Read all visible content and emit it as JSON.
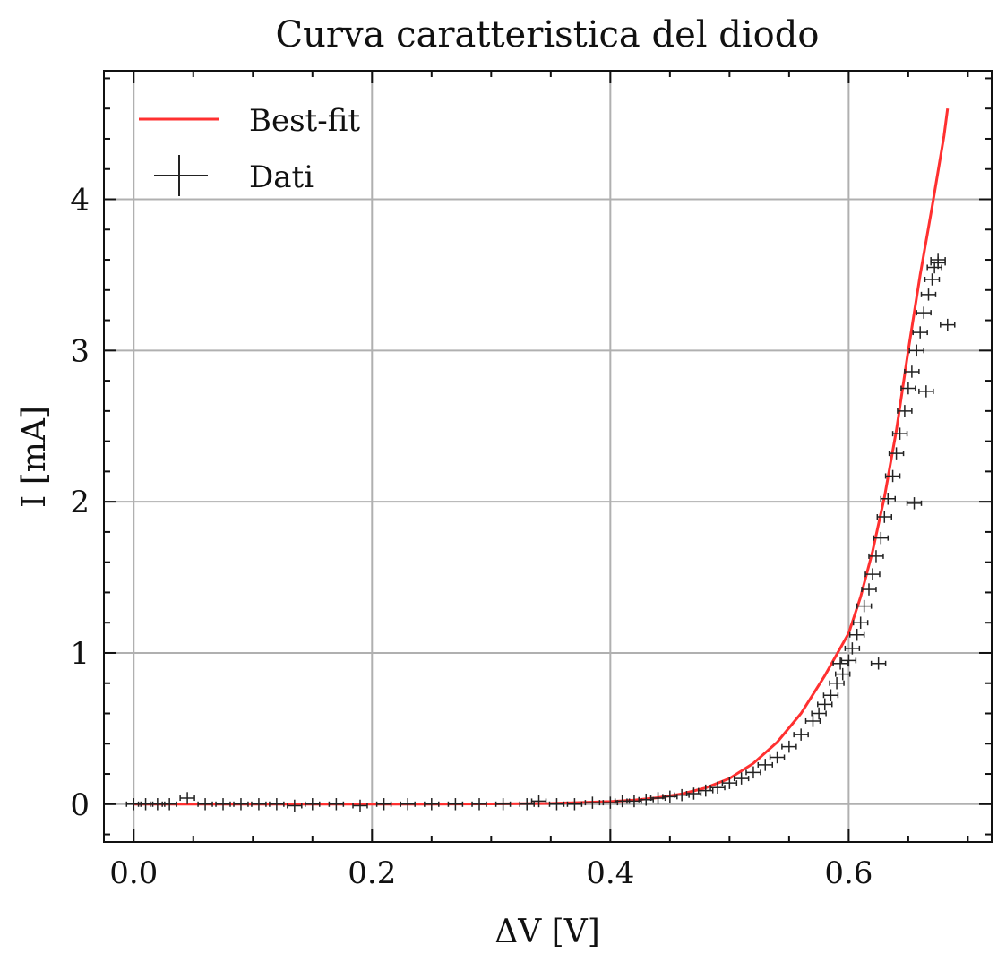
{
  "chart_data": {
    "type": "scatter",
    "title": "Curva caratteristica del diodo",
    "xlabel": "ΔV [V]",
    "ylabel": "I [mA]",
    "xlim": [
      -0.025,
      0.72
    ],
    "ylim": [
      -0.25,
      4.85
    ],
    "xticks": [
      0.0,
      0.2,
      0.4,
      0.6
    ],
    "xtick_labels": [
      "0.0",
      "0.2",
      "0.4",
      "0.6"
    ],
    "yticks": [
      0,
      1,
      2,
      3,
      4
    ],
    "ytick_labels": [
      "0",
      "1",
      "2",
      "3",
      "4"
    ],
    "grid": true,
    "legend_position": "top-left",
    "legend": [
      {
        "label": "Best-fit",
        "kind": "line",
        "color": "#ff3030"
      },
      {
        "label": "Dati",
        "kind": "errorbar",
        "color": "#222222"
      }
    ],
    "series": [
      {
        "name": "Best-fit",
        "kind": "line",
        "color": "#ff3030",
        "x": [
          0.0,
          0.05,
          0.1,
          0.15,
          0.2,
          0.25,
          0.3,
          0.35,
          0.4,
          0.42,
          0.44,
          0.46,
          0.48,
          0.5,
          0.52,
          0.54,
          0.56,
          0.58,
          0.6,
          0.61,
          0.62,
          0.63,
          0.64,
          0.65,
          0.66,
          0.67,
          0.68,
          0.683
        ],
        "y": [
          0.0,
          0.0,
          0.0,
          0.0,
          0.0,
          0.0,
          0.002,
          0.005,
          0.017,
          0.027,
          0.043,
          0.068,
          0.108,
          0.17,
          0.27,
          0.41,
          0.6,
          0.85,
          1.13,
          1.37,
          1.67,
          2.03,
          2.47,
          3.0,
          3.5,
          3.95,
          4.42,
          4.6
        ]
      },
      {
        "name": "Dati",
        "kind": "errorbar",
        "color": "#222222",
        "xerr": 0.006,
        "yerr": 0.04,
        "x": [
          0.0,
          0.01,
          0.02,
          0.03,
          0.045,
          0.06,
          0.075,
          0.09,
          0.105,
          0.12,
          0.135,
          0.15,
          0.17,
          0.19,
          0.21,
          0.23,
          0.25,
          0.27,
          0.29,
          0.31,
          0.33,
          0.34,
          0.355,
          0.37,
          0.385,
          0.4,
          0.41,
          0.42,
          0.43,
          0.44,
          0.45,
          0.46,
          0.47,
          0.48,
          0.49,
          0.5,
          0.51,
          0.52,
          0.53,
          0.54,
          0.55,
          0.56,
          0.57,
          0.575,
          0.58,
          0.585,
          0.59,
          0.595,
          0.6,
          0.603,
          0.607,
          0.61,
          0.613,
          0.617,
          0.62,
          0.623,
          0.627,
          0.63,
          0.633,
          0.637,
          0.64,
          0.643,
          0.647,
          0.65,
          0.653,
          0.657,
          0.66,
          0.663,
          0.667,
          0.67,
          0.672,
          0.675,
          0.593,
          0.625,
          0.655,
          0.665,
          0.683,
          0.675
        ],
        "y": [
          0.0,
          0.0,
          0.0,
          0.0,
          0.04,
          0.0,
          0.0,
          0.0,
          0.0,
          0.0,
          -0.01,
          0.0,
          0.0,
          -0.01,
          0.0,
          0.0,
          0.0,
          0.0,
          0.0,
          0.0,
          0.0,
          0.02,
          0.0,
          0.0,
          0.01,
          0.01,
          0.02,
          0.02,
          0.03,
          0.04,
          0.05,
          0.06,
          0.07,
          0.09,
          0.11,
          0.14,
          0.17,
          0.21,
          0.26,
          0.31,
          0.38,
          0.46,
          0.55,
          0.6,
          0.66,
          0.72,
          0.8,
          0.86,
          0.95,
          1.03,
          1.12,
          1.2,
          1.31,
          1.42,
          1.52,
          1.64,
          1.76,
          1.9,
          2.02,
          2.17,
          2.32,
          2.45,
          2.6,
          2.75,
          2.86,
          3.0,
          3.12,
          3.25,
          3.37,
          3.47,
          3.55,
          3.6,
          0.93,
          0.93,
          1.99,
          2.73,
          3.17,
          3.58
        ]
      }
    ]
  }
}
